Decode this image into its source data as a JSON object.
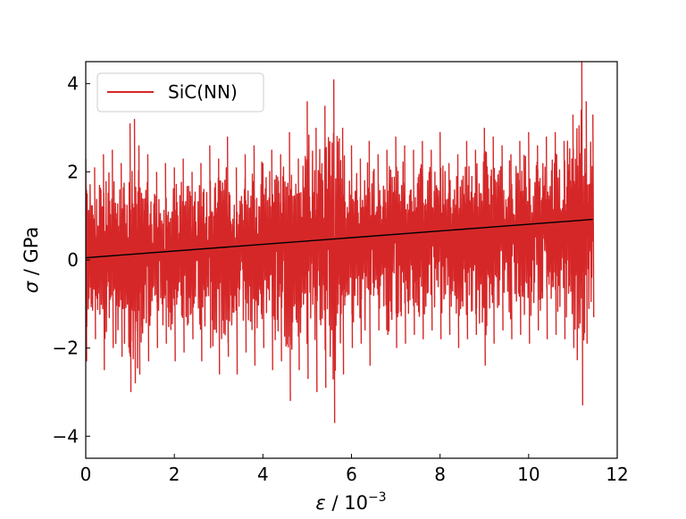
{
  "chart_data": {
    "type": "line",
    "xlabel": "ε / 10",
    "xlabel_exponent": "−3",
    "ylabel": "σ / GPa",
    "xlim": [
      0,
      12
    ],
    "ylim": [
      -4.5,
      4.5
    ],
    "x_ticks": [
      0,
      2,
      4,
      6,
      8,
      10,
      12
    ],
    "x_tick_labels": [
      "0",
      "2",
      "4",
      "6",
      "8",
      "10",
      "12"
    ],
    "y_ticks": [
      -4,
      -2,
      0,
      2,
      4
    ],
    "y_tick_labels": [
      "−4",
      "−2",
      "0",
      "2",
      "4"
    ],
    "grid": false,
    "legend_position": "upper-left",
    "series": [
      {
        "name": "SiC(NN)",
        "color": "#d62728",
        "style": "noisy-oscillating-line",
        "x": [
          0.0,
          0.2,
          0.4,
          0.6,
          0.8,
          1.0,
          1.1,
          1.2,
          1.4,
          1.6,
          1.8,
          2.0,
          2.2,
          2.4,
          2.6,
          2.8,
          3.0,
          3.2,
          3.4,
          3.6,
          3.8,
          4.0,
          4.2,
          4.4,
          4.6,
          4.8,
          5.0,
          5.2,
          5.4,
          5.6,
          5.8,
          6.0,
          6.2,
          6.4,
          6.6,
          6.8,
          7.0,
          7.2,
          7.4,
          7.6,
          7.8,
          8.0,
          8.2,
          8.4,
          8.6,
          8.8,
          9.0,
          9.2,
          9.4,
          9.6,
          9.8,
          10.0,
          10.2,
          10.4,
          10.6,
          10.8,
          11.0,
          11.2,
          11.3,
          11.45
        ],
        "y_max": [
          2.3,
          2.1,
          2.4,
          2.5,
          2.2,
          3.1,
          3.2,
          2.6,
          2.4,
          2.0,
          2.2,
          2.1,
          2.3,
          2.0,
          2.2,
          2.6,
          2.3,
          2.8,
          2.1,
          2.4,
          2.6,
          2.2,
          2.5,
          2.4,
          2.9,
          2.3,
          3.6,
          3.0,
          3.5,
          4.1,
          3.0,
          2.6,
          2.3,
          2.7,
          2.4,
          2.5,
          2.8,
          2.6,
          2.5,
          2.7,
          2.5,
          2.9,
          2.2,
          2.4,
          2.7,
          2.5,
          3.0,
          2.8,
          2.6,
          2.4,
          2.7,
          2.9,
          2.6,
          2.8,
          2.9,
          2.7,
          3.3,
          4.5,
          3.6,
          3.3
        ],
        "y_min": [
          -2.3,
          -1.8,
          -2.5,
          -2.0,
          -2.2,
          -3.0,
          -2.8,
          -2.6,
          -2.3,
          -2.0,
          -1.9,
          -2.3,
          -2.1,
          -1.8,
          -2.3,
          -2.0,
          -2.6,
          -2.2,
          -2.6,
          -2.1,
          -2.4,
          -2.0,
          -2.5,
          -2.3,
          -3.2,
          -2.5,
          -2.7,
          -3.0,
          -2.9,
          -3.7,
          -2.6,
          -2.0,
          -1.9,
          -2.4,
          -1.6,
          -1.7,
          -2.0,
          -1.9,
          -1.7,
          -1.8,
          -1.6,
          -1.8,
          -1.7,
          -2.0,
          -1.8,
          -1.7,
          -2.4,
          -1.9,
          -1.6,
          -1.8,
          -1.7,
          -1.9,
          -1.6,
          -1.8,
          -1.7,
          -1.8,
          -2.0,
          -3.3,
          -1.9,
          -1.3
        ]
      },
      {
        "name": "",
        "color": "#000000",
        "style": "linear-fit",
        "x": [
          0,
          11.45
        ],
        "y": [
          0.05,
          0.92
        ]
      }
    ]
  }
}
